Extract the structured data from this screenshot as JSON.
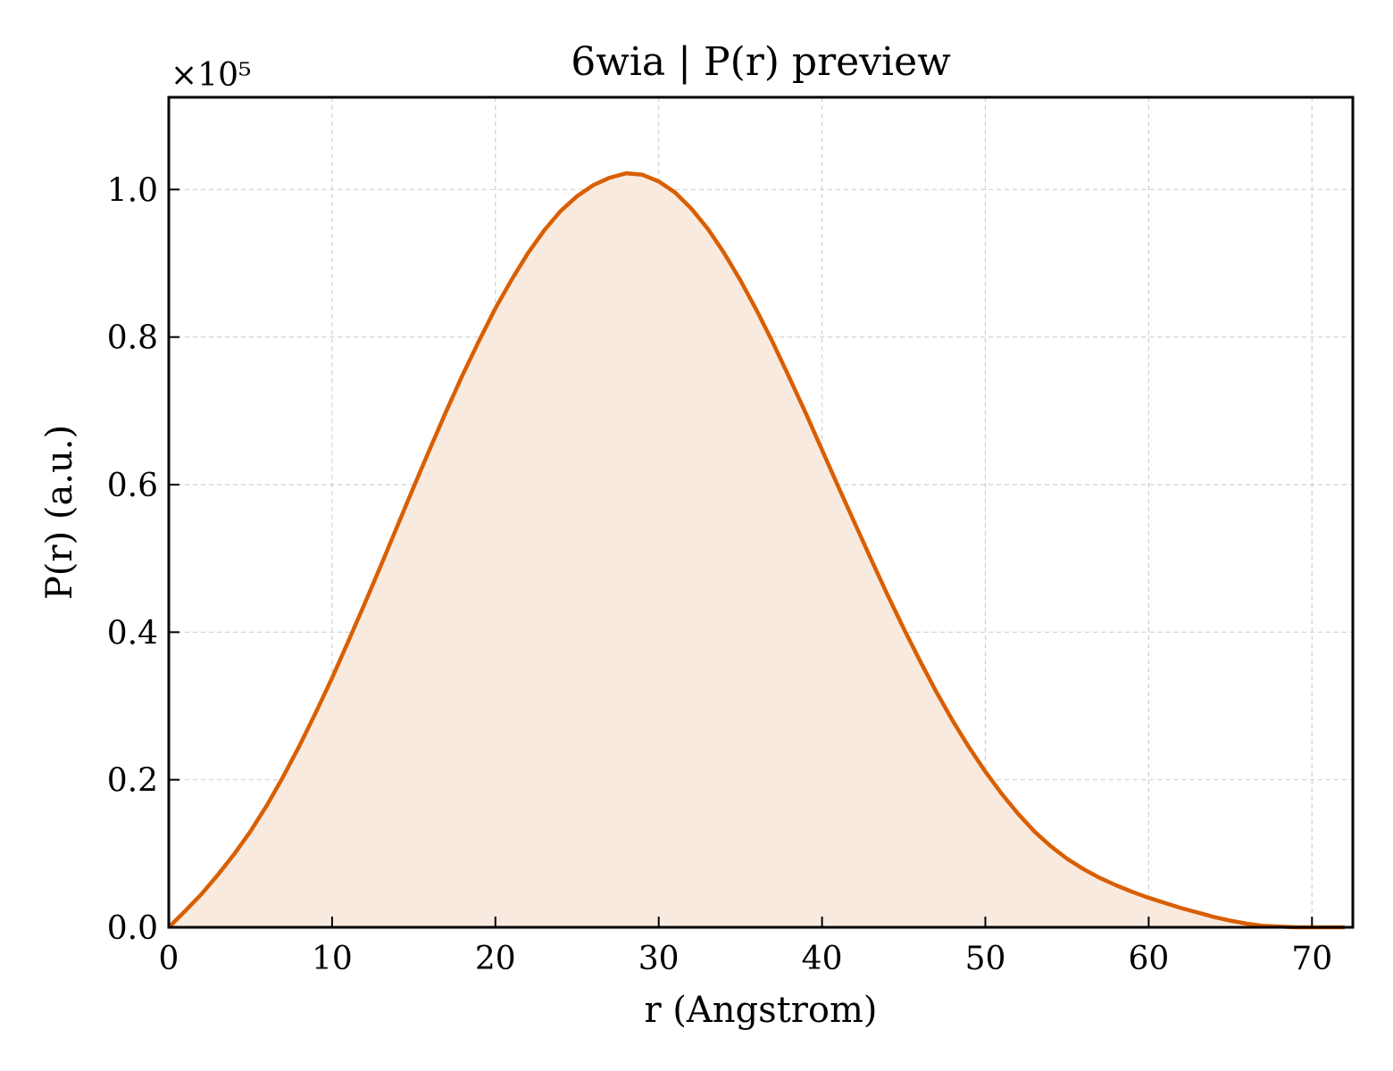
{
  "chart_data": {
    "type": "area",
    "title": "6wia | P(r) preview",
    "xlabel": "r (Angstrom)",
    "ylabel": "P(r) (a.u.)",
    "y_offset_text": "×10⁵",
    "xlim": [
      0,
      72.5
    ],
    "ylim": [
      0,
      1.125
    ],
    "xticks": [
      0,
      10,
      20,
      30,
      40,
      50,
      60,
      70
    ],
    "xtick_labels": [
      "0",
      "10",
      "20",
      "30",
      "40",
      "50",
      "60",
      "70"
    ],
    "yticks": [
      0.0,
      0.2,
      0.4,
      0.6,
      0.8,
      1.0
    ],
    "ytick_labels": [
      "0.0",
      "0.2",
      "0.4",
      "0.6",
      "0.8",
      "1.0"
    ],
    "grid": true,
    "colors": {
      "line": "#d95f02",
      "fill": "#f9eadf"
    },
    "series": [
      {
        "x": [
          0,
          1,
          2,
          3,
          4,
          5,
          6,
          7,
          8,
          9,
          10,
          11,
          12,
          13,
          14,
          15,
          16,
          17,
          18,
          19,
          20,
          21,
          22,
          23,
          24,
          25,
          26,
          27,
          28,
          29,
          30,
          31,
          32,
          33,
          34,
          35,
          36,
          37,
          38,
          39,
          40,
          41,
          42,
          43,
          44,
          45,
          46,
          47,
          48,
          49,
          50,
          51,
          52,
          53,
          54,
          55,
          56,
          57,
          58,
          59,
          60,
          61,
          62,
          63,
          64,
          65,
          66,
          67,
          68,
          69,
          70,
          71,
          72
        ],
        "y": [
          0.0,
          0.022,
          0.045,
          0.071,
          0.099,
          0.13,
          0.165,
          0.204,
          0.246,
          0.291,
          0.338,
          0.388,
          0.439,
          0.491,
          0.544,
          0.597,
          0.649,
          0.7,
          0.749,
          0.795,
          0.839,
          0.878,
          0.914,
          0.945,
          0.971,
          0.991,
          1.006,
          1.016,
          1.022,
          1.02,
          1.011,
          0.996,
          0.974,
          0.947,
          0.914,
          0.877,
          0.836,
          0.792,
          0.745,
          0.697,
          0.647,
          0.597,
          0.548,
          0.499,
          0.451,
          0.405,
          0.361,
          0.319,
          0.28,
          0.244,
          0.211,
          0.181,
          0.154,
          0.13,
          0.11,
          0.093,
          0.079,
          0.067,
          0.057,
          0.048,
          0.04,
          0.033,
          0.026,
          0.02,
          0.014,
          0.009,
          0.005,
          0.002,
          0.001,
          0.0,
          0.0,
          0.0,
          0.0
        ]
      }
    ]
  }
}
